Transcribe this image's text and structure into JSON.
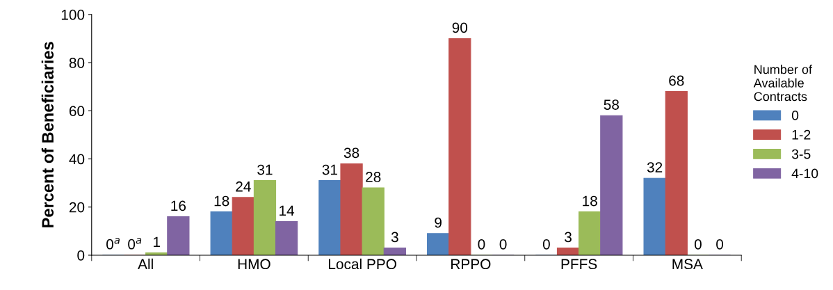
{
  "chart_data": {
    "type": "bar",
    "ylabel": "Percent of Beneficiaries",
    "legend_title": "Number of\nAvailable\nContracts",
    "categories": [
      "All",
      "HMO",
      "Local PPO",
      "RPPO",
      "PFFS",
      "MSA"
    ],
    "series": [
      {
        "name": "0",
        "color": "#4f81bd",
        "values": [
          0,
          18,
          31,
          9,
          0,
          32
        ],
        "value_labels": [
          "0$^{a}$",
          "18",
          "31",
          "9",
          "0",
          "32"
        ]
      },
      {
        "name": "1-2",
        "color": "#c0504d",
        "values": [
          0,
          24,
          38,
          90,
          3,
          68
        ],
        "value_labels": [
          "0$^{a}$",
          "24",
          "38",
          "90",
          "3",
          "68"
        ]
      },
      {
        "name": "3-5",
        "color": "#9bbb59",
        "values": [
          1,
          31,
          28,
          0,
          18,
          0
        ],
        "value_labels": [
          "1",
          "31",
          "28",
          "0",
          "18",
          "0"
        ]
      },
      {
        "name": "4-10",
        "color": "#8064a2",
        "values": [
          16,
          14,
          3,
          0,
          58,
          0
        ],
        "value_labels": [
          "16",
          "14",
          "3",
          "0",
          "58",
          "0"
        ]
      }
    ],
    "ylim": [
      0,
      100
    ],
    "yticks": [
      0,
      20,
      40,
      60,
      80,
      100
    ],
    "legend": "right"
  }
}
